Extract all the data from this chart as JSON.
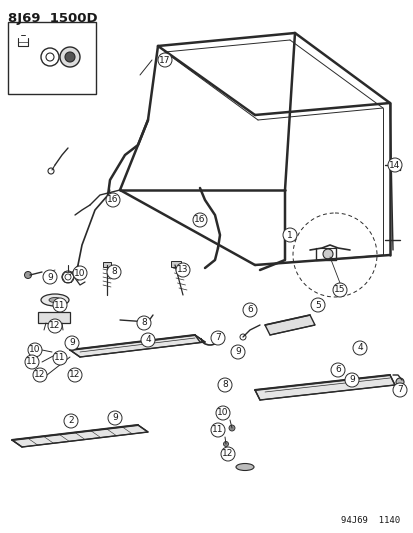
{
  "title": "8J69  1500D",
  "footer": "94J69  1140",
  "bg_color": "#ffffff",
  "line_color": "#2a2a2a",
  "text_color": "#1a1a1a",
  "fig_width": 4.14,
  "fig_height": 5.33,
  "dpi": 100
}
